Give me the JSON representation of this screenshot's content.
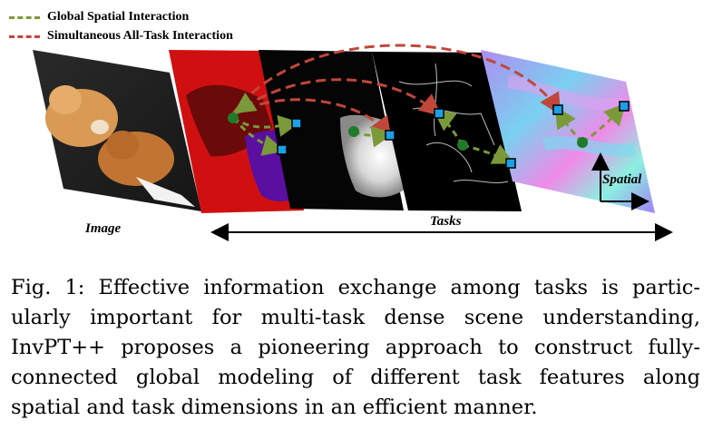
{
  "legend": {
    "global": {
      "label": "Global Spatial Interaction",
      "color": "#7a9a3a"
    },
    "alltask": {
      "label": "Simultaneous All-Task Interaction",
      "color": "#c0473a"
    }
  },
  "labels": {
    "image": "Image",
    "tasks": "Tasks",
    "spatial": "Spatial"
  },
  "panels": [
    {
      "name": "input-image",
      "kind": "photo"
    },
    {
      "name": "semantic-segmentation",
      "kind": "segmentation",
      "colors": [
        "#d01010",
        "#6a0a0a",
        "#5a0fa0"
      ]
    },
    {
      "name": "saliency",
      "kind": "saliency"
    },
    {
      "name": "edge",
      "kind": "edge"
    },
    {
      "name": "normals",
      "kind": "normals"
    }
  ],
  "caption": {
    "lines": [
      "Fig. 1: Effective information exchange among tasks is partic-",
      "ularly important for multi-task dense scene understanding,",
      "InvPT++ proposes a pioneering approach to construct fully-",
      "connected global modeling of different task features along",
      "spatial and task dimensions in an efficient manner."
    ]
  }
}
